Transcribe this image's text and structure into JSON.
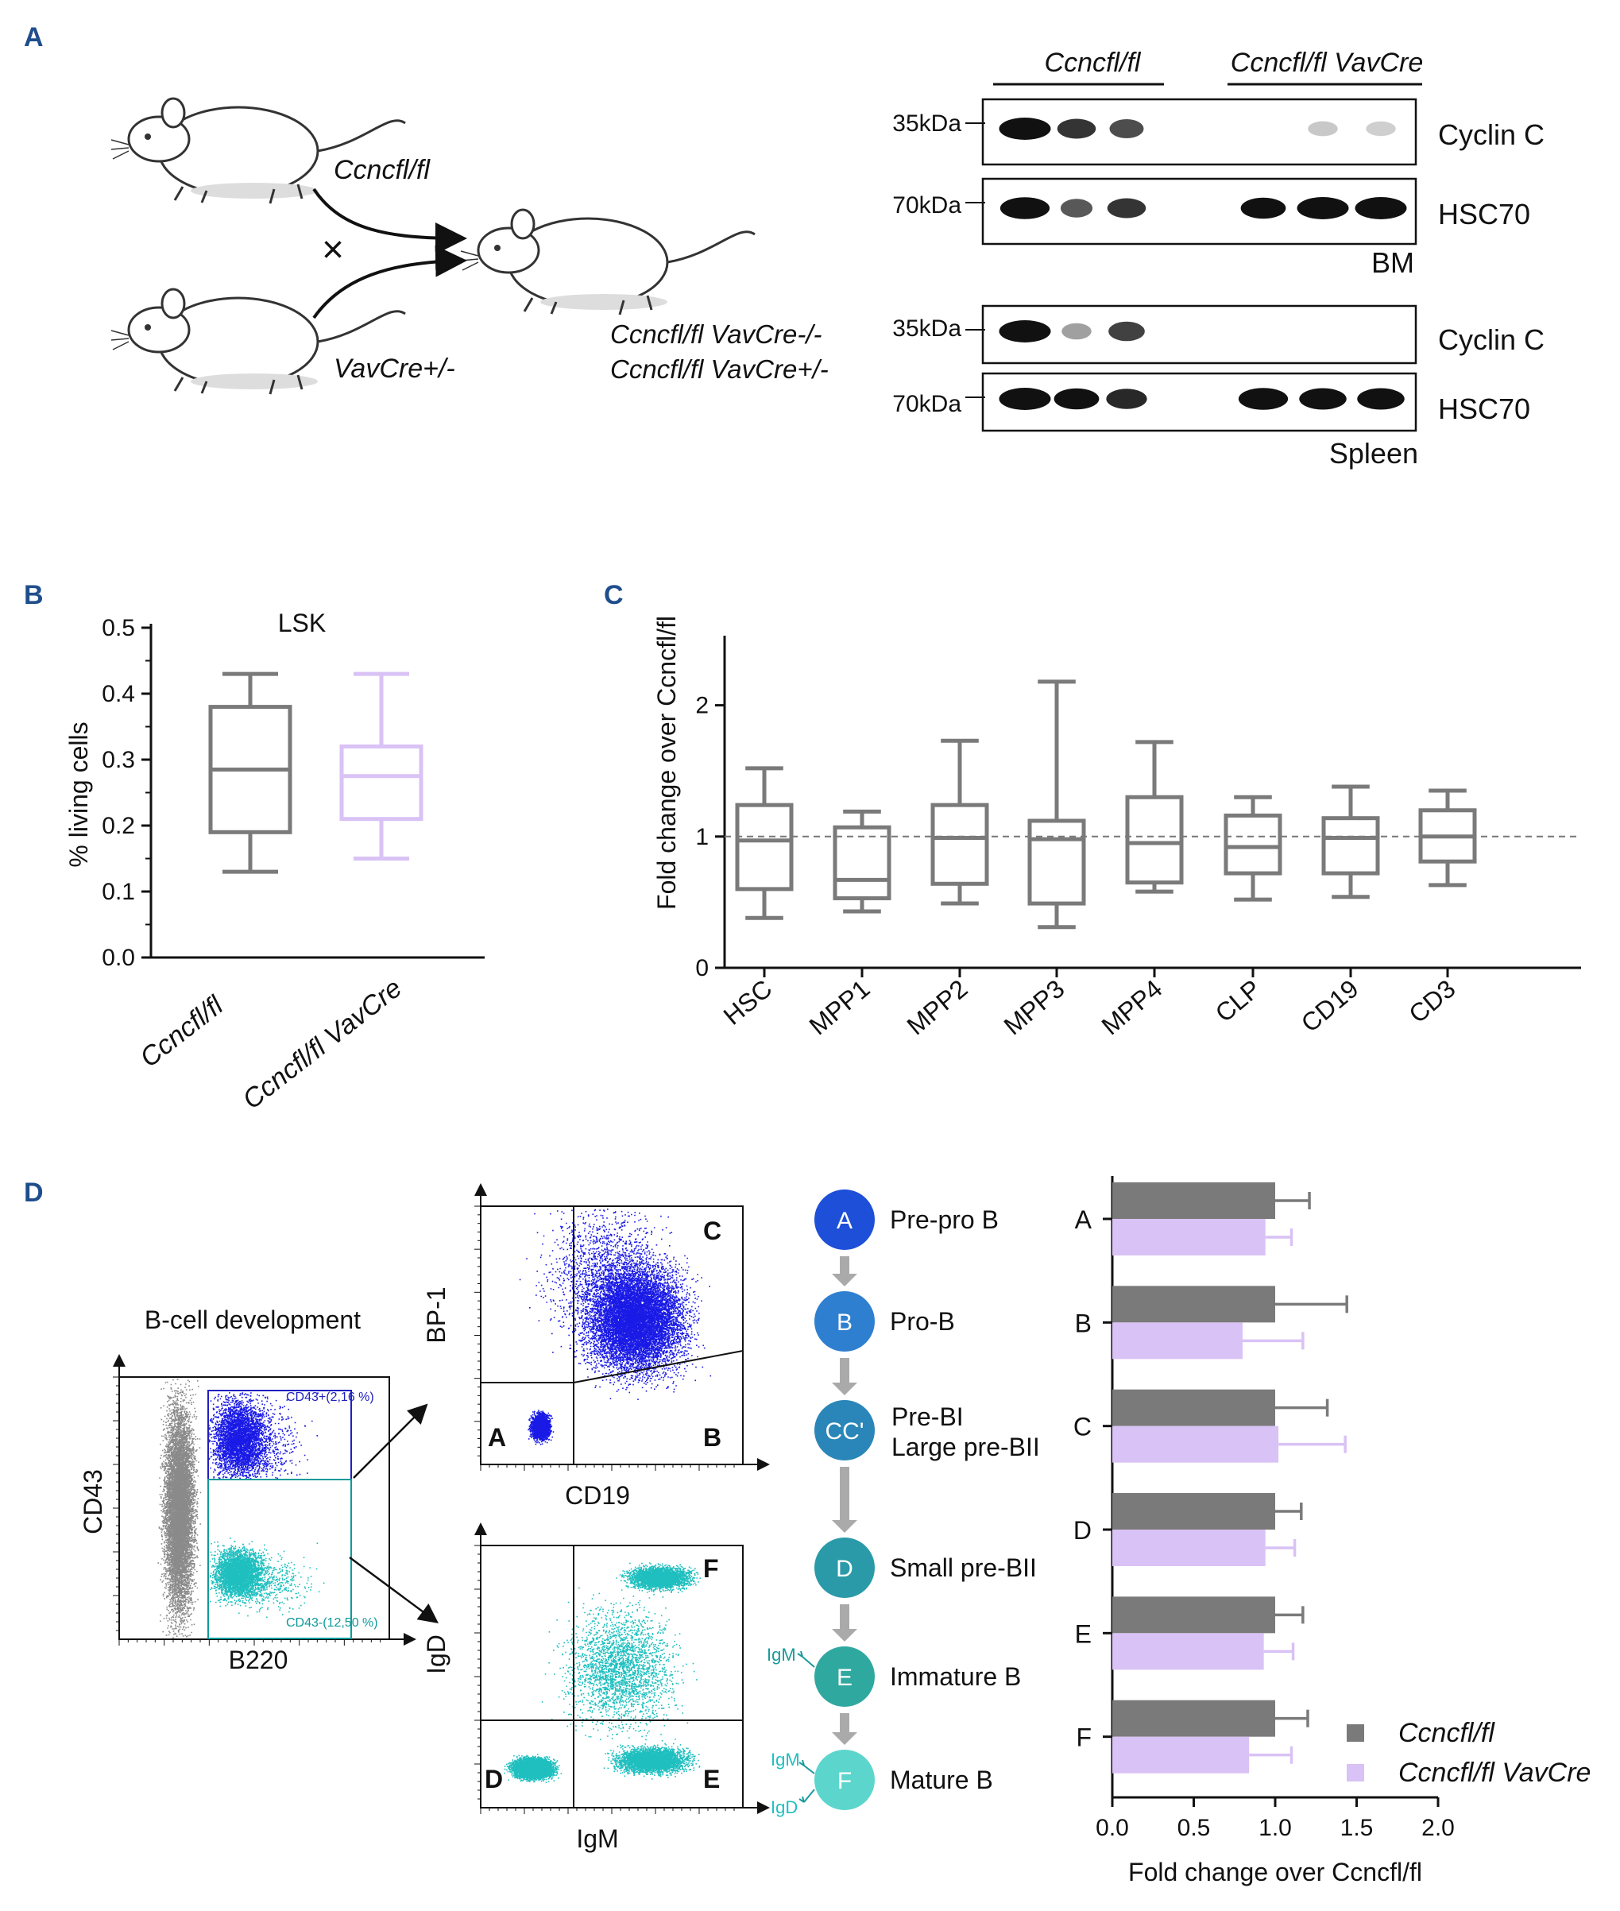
{
  "colors": {
    "panel_letter": "#1f4e8c",
    "control": "#7a7a7a",
    "vavcre": "#d9c2f5",
    "facs_grey": "#8a8a8a",
    "facs_blue": "#1a1ae6",
    "facs_teal": "#1fbfbf",
    "stage_A": "#1e4fd8",
    "stage_B": "#2f7fd0",
    "stage_C": "#2a86b8",
    "stage_D": "#2a9aa8",
    "stage_E": "#2fa8a0",
    "stage_F": "#5cd6cc"
  },
  "panelA": {
    "letter": "A",
    "mouse1_genotype": "Ccncfl/fl",
    "mouse2_genotype": "VavCre+/-",
    "cross_symbol": "×",
    "offspring_line1": "Ccncfl/fl VavCre-/-",
    "offspring_line2": "Ccncfl/fl VavCre+/-",
    "blot_group1": "Ccncfl/fl",
    "blot_group2": "Ccncfl/fl VavCre",
    "bm_blots": [
      {
        "kda": "35kDa",
        "protein": "Cyclin C",
        "bands": [
          1.0,
          0.7,
          0.6,
          0.0,
          0.08,
          0.05
        ]
      },
      {
        "kda": "70kDa",
        "protein": "HSC70",
        "bands": [
          0.95,
          0.55,
          0.7,
          0.85,
          1.0,
          1.0
        ]
      }
    ],
    "bm_tissue": "BM",
    "spleen_blots": [
      {
        "kda": "35kDa",
        "protein": "Cyclin C",
        "bands": [
          1.0,
          0.25,
          0.65,
          0.0,
          0.0,
          0.0
        ]
      },
      {
        "kda": "70kDa",
        "protein": "HSC70",
        "bands": [
          1.0,
          0.85,
          0.75,
          0.95,
          0.9,
          0.9
        ]
      }
    ],
    "spleen_tissue": "Spleen"
  },
  "panelB": {
    "letter": "B",
    "chart_data": {
      "type": "box",
      "title": "LSK",
      "ylabel": "% living cells",
      "ylim": [
        0,
        0.5
      ],
      "yticks": [
        "0.0",
        "0.1",
        "0.2",
        "0.3",
        "0.4",
        "0.5"
      ],
      "categories": [
        "Ccncfl/fl",
        "Ccncfl/fl VavCre"
      ],
      "boxes": [
        {
          "min": 0.13,
          "q1": 0.19,
          "median": 0.285,
          "q3": 0.38,
          "max": 0.43
        },
        {
          "min": 0.15,
          "q1": 0.21,
          "median": 0.275,
          "q3": 0.32,
          "max": 0.43
        }
      ]
    }
  },
  "panelC": {
    "letter": "C",
    "chart_data": {
      "type": "box",
      "ylabel": "Fold change over Ccncfl/fl",
      "ylim": [
        0,
        2.5
      ],
      "yticks": [
        "0",
        "1",
        "2"
      ],
      "reference_line": 1,
      "categories": [
        "HSC",
        "MPP1",
        "MPP2",
        "MPP3",
        "MPP4",
        "CLP",
        "CD19",
        "CD3"
      ],
      "boxes": [
        {
          "min": 0.38,
          "q1": 0.6,
          "median": 0.97,
          "q3": 1.24,
          "max": 1.52
        },
        {
          "min": 0.43,
          "q1": 0.53,
          "median": 0.67,
          "q3": 1.07,
          "max": 1.19
        },
        {
          "min": 0.49,
          "q1": 0.64,
          "median": 0.99,
          "q3": 1.24,
          "max": 1.73
        },
        {
          "min": 0.31,
          "q1": 0.49,
          "median": 0.98,
          "q3": 1.12,
          "max": 2.18
        },
        {
          "min": 0.58,
          "q1": 0.65,
          "median": 0.95,
          "q3": 1.3,
          "max": 1.72
        },
        {
          "min": 0.52,
          "q1": 0.72,
          "median": 0.92,
          "q3": 1.16,
          "max": 1.3
        },
        {
          "min": 0.54,
          "q1": 0.72,
          "median": 0.99,
          "q3": 1.14,
          "max": 1.38
        },
        {
          "min": 0.63,
          "q1": 0.81,
          "median": 1.0,
          "q3": 1.2,
          "max": 1.35
        }
      ]
    }
  },
  "panelD": {
    "letter": "D",
    "facs1": {
      "title": "B-cell development",
      "xlabel": "B220",
      "ylabel": "CD43",
      "gate_top": "CD43+(2,16 %)",
      "gate_bottom": "CD43-(12,50 %)"
    },
    "facs2": {
      "xlabel": "CD19",
      "ylabel": "BP-1",
      "quadrants": [
        "A",
        "B",
        "C"
      ]
    },
    "facs3": {
      "xlabel": "IgM",
      "ylabel": "IgD",
      "quadrants": [
        "D",
        "E",
        "F"
      ]
    },
    "stages": [
      {
        "circle": "A",
        "label": "Pre-pro B",
        "label2": ""
      },
      {
        "circle": "B",
        "label": "Pro-B",
        "label2": ""
      },
      {
        "circle": "CC'",
        "label": "Pre-BI",
        "label2": "Large pre-BII"
      },
      {
        "circle": "D",
        "label": "Small pre-BII",
        "label2": ""
      },
      {
        "circle": "E",
        "label": "Immature B",
        "label2": ""
      },
      {
        "circle": "F",
        "label": "Mature B",
        "label2": ""
      }
    ],
    "receptor_labels": {
      "igm1": "IgM",
      "igm2": "IgM",
      "igd": "IgD"
    },
    "chart_data": {
      "type": "bar",
      "orientation": "horizontal",
      "categories": [
        "A",
        "B",
        "C",
        "D",
        "E",
        "F"
      ],
      "xlabel": "Fold change over Ccncfl/fl",
      "xlim": [
        0,
        2
      ],
      "xticks": [
        "0.0",
        "0.5",
        "1.0",
        "1.5",
        "2.0"
      ],
      "series": [
        {
          "name": "Ccncfl/fl",
          "values": [
            1.0,
            1.0,
            1.0,
            1.0,
            1.0,
            1.0
          ],
          "errors": [
            0.21,
            0.44,
            0.32,
            0.16,
            0.17,
            0.2
          ]
        },
        {
          "name": "Ccncfl/fl VavCre",
          "values": [
            0.94,
            0.8,
            1.02,
            0.94,
            0.93,
            0.84
          ],
          "errors": [
            0.16,
            0.37,
            0.41,
            0.18,
            0.18,
            0.26
          ]
        }
      ],
      "legend": "bottom-right"
    }
  }
}
